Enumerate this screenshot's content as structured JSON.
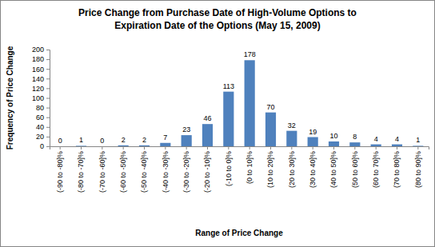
{
  "chart_data": {
    "type": "bar",
    "title": "Price Change from Purchase Date of High-Volume Options to\nExpiration Date of the Options (May 15, 2009)",
    "x_label": "Range of Price Change",
    "y_label": "Frequency of Price Change",
    "categories": [
      "(-90 to -80]%",
      "(-80 to -70]%",
      "(-70 to -60]%",
      "(-60 to -50]%",
      "(-50 to -40]%",
      "(-40 to -30]%",
      "(-30 to -20]%",
      "(-20 to -10]%",
      "(-10 to 0]%",
      "(0 to 10]%",
      "(10 to 20]%",
      "(20 to 30]%",
      "(30 to 40]%",
      "(40 to 50]%",
      "(50 to 60]%",
      "(60 to 70]%",
      "(70 to 80]%",
      "(80 to 90]%"
    ],
    "values": [
      0,
      1,
      0,
      2,
      2,
      7,
      23,
      46,
      113,
      178,
      70,
      32,
      19,
      10,
      8,
      4,
      4,
      1
    ],
    "color": "#4f81bd",
    "ylim": [
      0,
      200
    ],
    "yticks": [
      0,
      20,
      40,
      60,
      80,
      100,
      120,
      140,
      160,
      180,
      200
    ],
    "grid": false,
    "data_labels": true
  }
}
